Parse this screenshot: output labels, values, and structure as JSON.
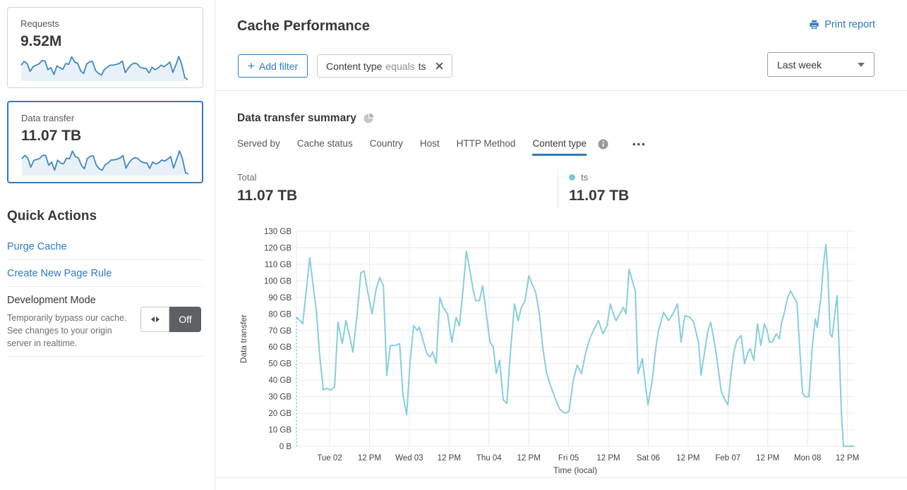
{
  "colors": {
    "accent_blue": "#2f7bbf",
    "series_cyan": "#87cedf",
    "legend_dot": "#7ec7da",
    "sparkline_stroke": "#3f87c5",
    "sparkline_fill": "#e9f1f8",
    "grid": "#ececec",
    "toggle_off_bg": "#5d6164"
  },
  "icons": {
    "print": "printer-icon",
    "summary": "pie-chart-icon",
    "tab_info": "info-icon",
    "tab_more": "ellipsis-icon",
    "chip_close": "close-icon",
    "select_caret": "chevron-down-icon",
    "toggle": "left-right-arrows-icon"
  },
  "sidebar": {
    "cards": [
      {
        "label": "Requests",
        "value": "9.52M",
        "selected": false
      },
      {
        "label": "Data transfer",
        "value": "11.07 TB",
        "selected": true
      }
    ],
    "sparklines": {
      "requests": [
        70,
        88,
        78,
        40,
        62,
        70,
        76,
        92,
        90,
        48,
        58,
        25,
        66,
        58,
        50,
        78,
        74,
        110,
        85,
        78,
        42,
        30,
        75,
        86,
        88,
        44,
        30,
        22,
        50,
        60,
        70,
        70,
        74,
        78,
        90,
        34,
        55,
        72,
        80,
        76,
        60,
        55,
        54,
        32,
        60,
        48,
        56,
        70,
        62,
        72,
        85,
        35,
        70,
        112,
        72,
        10,
        0
      ],
      "data_transfer": [
        78,
        95,
        82,
        35,
        70,
        74,
        80,
        95,
        95,
        45,
        61,
        20,
        71,
        56,
        52,
        81,
        78,
        117,
        88,
        82,
        45,
        27,
        79,
        90,
        93,
        46,
        27,
        20,
        48,
        57,
        72,
        72,
        77,
        81,
        95,
        30,
        58,
        75,
        84,
        79,
        64,
        58,
        57,
        29,
        62,
        51,
        58,
        72,
        66,
        76,
        89,
        31,
        74,
        118,
        76,
        8,
        0
      ]
    },
    "quick_actions": {
      "title": "Quick Actions",
      "links": [
        "Purge Cache",
        "Create New Page Rule"
      ],
      "dev_mode": {
        "title": "Development Mode",
        "description": "Temporarily bypass our cache. See changes to your origin server in realtime.",
        "toggle_state": "Off"
      }
    }
  },
  "header": {
    "title": "Cache Performance",
    "print_label": "Print report"
  },
  "filters": {
    "add_plus": "+",
    "add_label": "Add filter",
    "chip": {
      "field": "Content type",
      "operator": "equals",
      "value": "ts"
    }
  },
  "time_range": {
    "selected": "Last week"
  },
  "summary": {
    "title": "Data transfer summary",
    "tabs": [
      "Served by",
      "Cache status",
      "Country",
      "Host",
      "HTTP Method",
      "Content type"
    ],
    "active_tab": "Content type",
    "more_label": "•••",
    "total_label": "Total",
    "total_value": "11.07 TB",
    "legend": {
      "name": "ts",
      "value": "11.07 TB",
      "color": "#7ec7da"
    }
  },
  "chart_data": {
    "type": "line",
    "title": "Data transfer summary",
    "xlabel": "Time (local)",
    "ylabel": "Data transfer",
    "unit": "GB",
    "ylim": [
      0,
      130
    ],
    "grid": true,
    "x_ticks": [
      "Tue 02",
      "12 PM",
      "Wed 03",
      "12 PM",
      "Thu 04",
      "12 PM",
      "Fri 05",
      "12 PM",
      "Sat 06",
      "12 PM",
      "Feb 07",
      "12 PM",
      "Mon 08",
      "12 PM"
    ],
    "x_tick_hours": [
      10,
      22,
      34,
      46,
      58,
      70,
      82,
      94,
      106,
      118,
      130,
      142,
      154,
      166
    ],
    "y_ticks": [
      "0 B",
      "10 GB",
      "20 GB",
      "30 GB",
      "40 GB",
      "50 GB",
      "60 GB",
      "70 GB",
      "80 GB",
      "90 GB",
      "100 GB",
      "110 GB",
      "120 GB",
      "130 GB"
    ],
    "hours_range": [
      0,
      168
    ],
    "leading_dashed_drop": true,
    "series": [
      {
        "name": "ts",
        "color": "#87cedf",
        "points": [
          [
            0,
            78
          ],
          [
            1.1,
            76
          ],
          [
            1.9,
            74
          ],
          [
            3,
            95
          ],
          [
            4,
            114
          ],
          [
            5.1,
            96
          ],
          [
            6,
            82
          ],
          [
            7,
            55
          ],
          [
            8.1,
            34
          ],
          [
            9.1,
            35
          ],
          [
            10.4,
            34
          ],
          [
            11.5,
            36
          ],
          [
            12.5,
            75
          ],
          [
            13.8,
            62
          ],
          [
            14.9,
            76
          ],
          [
            16.2,
            65
          ],
          [
            17,
            57
          ],
          [
            18.3,
            80
          ],
          [
            19.4,
            105
          ],
          [
            20.4,
            106
          ],
          [
            21.5,
            93
          ],
          [
            22.8,
            80
          ],
          [
            24,
            95
          ],
          [
            25.1,
            102
          ],
          [
            26.2,
            97
          ],
          [
            27.2,
            43
          ],
          [
            28.3,
            61
          ],
          [
            29.8,
            61
          ],
          [
            31.1,
            62
          ],
          [
            32.1,
            31
          ],
          [
            33.2,
            19
          ],
          [
            34.2,
            50
          ],
          [
            35.3,
            73
          ],
          [
            36.4,
            70
          ],
          [
            37,
            72
          ],
          [
            38.3,
            63
          ],
          [
            39.3,
            56
          ],
          [
            40.2,
            54
          ],
          [
            41,
            57
          ],
          [
            42.1,
            50
          ],
          [
            43.2,
            90
          ],
          [
            44.2,
            84
          ],
          [
            45.5,
            80
          ],
          [
            46.8,
            63
          ],
          [
            48.1,
            78
          ],
          [
            49.1,
            73
          ],
          [
            50.2,
            95
          ],
          [
            51.2,
            118
          ],
          [
            52.1,
            108
          ],
          [
            53.2,
            95
          ],
          [
            54,
            88
          ],
          [
            55.1,
            88
          ],
          [
            56.1,
            97
          ],
          [
            57.2,
            80
          ],
          [
            58.3,
            63
          ],
          [
            59.3,
            60
          ],
          [
            60.2,
            44
          ],
          [
            61.2,
            52
          ],
          [
            62.3,
            28
          ],
          [
            63.4,
            26
          ],
          [
            64.4,
            55
          ],
          [
            65.7,
            86
          ],
          [
            66.8,
            76
          ],
          [
            67.8,
            84
          ],
          [
            68.9,
            88
          ],
          [
            70,
            103
          ],
          [
            71,
            98
          ],
          [
            72.1,
            93
          ],
          [
            73.2,
            80
          ],
          [
            74.2,
            60
          ],
          [
            75.3,
            45
          ],
          [
            76.3,
            38
          ],
          [
            77.4,
            32
          ],
          [
            78.5,
            26
          ],
          [
            79.5,
            22
          ],
          [
            80.8,
            20
          ],
          [
            82.1,
            21
          ],
          [
            83.4,
            40
          ],
          [
            84.6,
            49
          ],
          [
            85.9,
            44
          ],
          [
            87.2,
            57
          ],
          [
            88.5,
            66
          ],
          [
            89.5,
            70
          ],
          [
            91,
            76
          ],
          [
            92.3,
            68
          ],
          [
            93.6,
            73
          ],
          [
            94.6,
            86
          ],
          [
            95.5,
            80
          ],
          [
            96.3,
            76
          ],
          [
            97.4,
            80
          ],
          [
            98.5,
            84
          ],
          [
            99.3,
            80
          ],
          [
            100.2,
            107
          ],
          [
            101.2,
            100
          ],
          [
            102.1,
            94
          ],
          [
            102.9,
            44
          ],
          [
            104.2,
            53
          ],
          [
            105.1,
            38
          ],
          [
            105.9,
            25
          ],
          [
            107.2,
            40
          ],
          [
            108.3,
            60
          ],
          [
            109.1,
            70
          ],
          [
            110.6,
            81
          ],
          [
            112.1,
            76
          ],
          [
            113.4,
            80
          ],
          [
            114.8,
            86
          ],
          [
            115.9,
            63
          ],
          [
            117,
            79
          ],
          [
            118.5,
            78
          ],
          [
            119.7,
            75
          ],
          [
            121.2,
            62
          ],
          [
            121.9,
            43
          ],
          [
            123.2,
            60
          ],
          [
            124,
            70
          ],
          [
            124.8,
            75
          ],
          [
            125.9,
            63
          ],
          [
            126.5,
            55
          ],
          [
            127.4,
            42
          ],
          [
            128,
            33
          ],
          [
            129.1,
            28
          ],
          [
            130,
            25
          ],
          [
            131,
            45
          ],
          [
            131.9,
            58
          ],
          [
            132.7,
            64
          ],
          [
            134,
            67
          ],
          [
            135,
            50
          ],
          [
            136.1,
            57
          ],
          [
            136.7,
            59
          ],
          [
            137.8,
            52
          ],
          [
            138.9,
            74
          ],
          [
            139.9,
            61
          ],
          [
            141,
            74
          ],
          [
            141.8,
            70
          ],
          [
            142.5,
            63
          ],
          [
            143.3,
            63
          ],
          [
            144.6,
            68
          ],
          [
            145.5,
            65
          ],
          [
            146.1,
            74
          ],
          [
            146.9,
            80
          ],
          [
            148,
            90
          ],
          [
            148.9,
            94
          ],
          [
            149.9,
            90
          ],
          [
            150.8,
            87
          ],
          [
            151.6,
            60
          ],
          [
            152.5,
            32
          ],
          [
            153.3,
            30
          ],
          [
            154.4,
            30
          ],
          [
            155.4,
            60
          ],
          [
            156.3,
            77
          ],
          [
            156.9,
            72
          ],
          [
            158,
            90
          ],
          [
            158.8,
            110
          ],
          [
            159.5,
            122
          ],
          [
            160.1,
            105
          ],
          [
            160.8,
            68
          ],
          [
            161.4,
            66
          ],
          [
            162.2,
            80
          ],
          [
            162.9,
            91
          ],
          [
            163.5,
            60
          ],
          [
            164.2,
            20
          ],
          [
            164.8,
            0
          ],
          [
            165.9,
            0
          ],
          [
            167,
            0
          ],
          [
            168,
            0
          ]
        ]
      }
    ]
  }
}
